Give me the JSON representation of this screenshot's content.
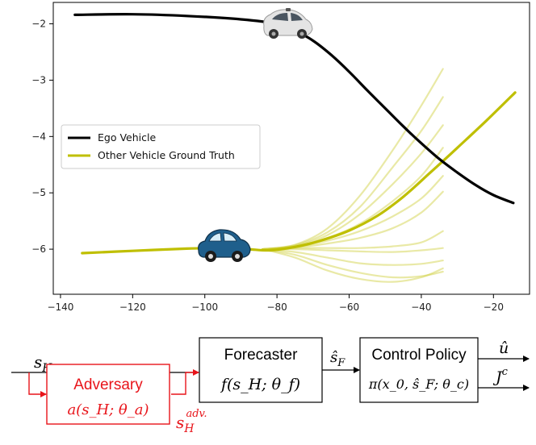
{
  "chart_data": {
    "type": "line",
    "xlim": [
      -142,
      -10
    ],
    "ylim": [
      -6.8,
      -1.62
    ],
    "xticks": [
      -140,
      -120,
      -100,
      -80,
      -60,
      -40,
      -20
    ],
    "yticks": [
      -2,
      -3,
      -4,
      -5,
      -6
    ],
    "xtick_labels": [
      "−140",
      "−120",
      "−100",
      "−80",
      "−60",
      "−40",
      "−20"
    ],
    "ytick_labels": [
      "−2",
      "−3",
      "−4",
      "−5",
      "−6"
    ],
    "grid": false,
    "legend_position": "center-left",
    "series": [
      {
        "name": "Ego Vehicle",
        "color": "#000000",
        "x": [
          -136,
          -120,
          -105,
          -90,
          -80,
          -75,
          -70,
          -65,
          -60,
          -55,
          -50,
          -45,
          -40,
          -35,
          -30,
          -25,
          -20,
          -14.5
        ],
        "y": [
          -1.84,
          -1.83,
          -1.86,
          -1.92,
          -2.0,
          -2.12,
          -2.3,
          -2.55,
          -2.85,
          -3.18,
          -3.5,
          -3.82,
          -4.12,
          -4.4,
          -4.64,
          -4.86,
          -5.04,
          -5.18
        ]
      },
      {
        "name": "Other Vehicle Ground Truth",
        "color": "#bfbf00",
        "x": [
          -134,
          -120,
          -105,
          -95,
          -88,
          -82,
          -75,
          -68,
          -60,
          -52,
          -45,
          -38,
          -30,
          -22,
          -14
        ],
        "y": [
          -6.07,
          -6.03,
          -5.99,
          -5.98,
          -6.0,
          -6.02,
          -5.96,
          -5.85,
          -5.67,
          -5.4,
          -5.07,
          -4.67,
          -4.2,
          -3.72,
          -3.22
        ]
      }
    ],
    "forecast_samples": {
      "color": "#cfcf3a",
      "x": [
        -84,
        -75,
        -66,
        -57,
        -48,
        -40,
        -34
      ],
      "samples_y": [
        [
          -6.0,
          -5.92,
          -5.63,
          -5.05,
          -4.25,
          -3.45,
          -2.8
        ],
        [
          -6.0,
          -5.93,
          -5.7,
          -5.25,
          -4.55,
          -3.9,
          -3.3
        ],
        [
          -6.0,
          -5.94,
          -5.75,
          -5.38,
          -4.85,
          -4.3,
          -3.8
        ],
        [
          -6.0,
          -5.95,
          -5.8,
          -5.55,
          -5.15,
          -4.7,
          -4.2
        ],
        [
          -6.0,
          -5.96,
          -5.85,
          -5.68,
          -5.42,
          -5.1,
          -4.7
        ],
        [
          -6.0,
          -5.97,
          -5.9,
          -5.8,
          -5.63,
          -5.35,
          -4.98
        ],
        [
          -6.0,
          -5.98,
          -5.98,
          -5.98,
          -5.95,
          -5.88,
          -5.68
        ],
        [
          -6.0,
          -6.0,
          -6.02,
          -6.04,
          -6.05,
          -6.02,
          -5.98
        ],
        [
          -6.0,
          -6.05,
          -6.15,
          -6.25,
          -6.28,
          -6.26,
          -6.2
        ],
        [
          -6.0,
          -6.1,
          -6.28,
          -6.42,
          -6.5,
          -6.48,
          -6.4
        ],
        [
          -6.0,
          -6.15,
          -6.38,
          -6.53,
          -6.58,
          -6.5,
          -6.34
        ]
      ]
    }
  },
  "diagram": {
    "input_label": "s",
    "input_sub": "H",
    "forecaster_title": "Forecaster",
    "forecaster_formula": "f(s_H; θ_f)",
    "forecast_label": "ŝ",
    "forecast_sub": "F",
    "control_title": "Control Policy",
    "control_formula": "π(x_0, ŝ_F; θ_c)",
    "output1": "û",
    "output2": "J",
    "output2_sup": "c",
    "adversary_title": "Adversary",
    "adversary_formula": "a(s_H; θ_a)",
    "adv_output": "s",
    "adv_output_sub": "H",
    "adv_output_sup": "adv.",
    "adversary_color": "#e8141a"
  }
}
